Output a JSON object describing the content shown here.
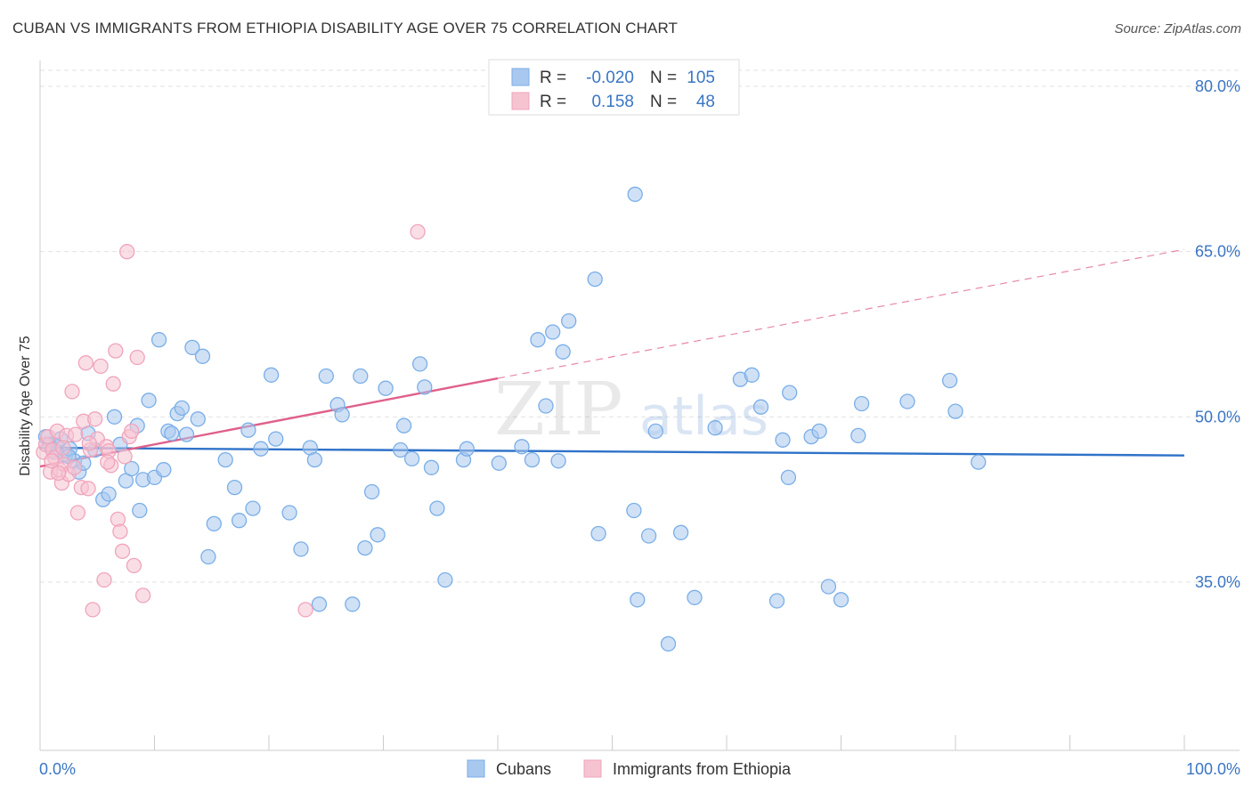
{
  "title": "CUBAN VS IMMIGRANTS FROM ETHIOPIA DISABILITY AGE OVER 75 CORRELATION CHART",
  "source": "Source: ZipAtlas.com",
  "watermark": {
    "zip": "ZIP",
    "atlas": "atlas"
  },
  "chart_data": {
    "type": "scatter",
    "ylabel": "Disability Age Over 75",
    "xlim": [
      0,
      100
    ],
    "ylim": [
      20,
      83
    ],
    "x_ticks": [
      "0.0%",
      "100.0%"
    ],
    "y_ticks": [
      {
        "value": 80,
        "label": "80.0%"
      },
      {
        "value": 65,
        "label": "65.0%"
      },
      {
        "value": 50,
        "label": "50.0%"
      },
      {
        "value": 35,
        "label": "35.0%"
      }
    ],
    "grid": true,
    "legend_position": "top-center",
    "stats_legend": [
      {
        "r_label": "R =",
        "r_value": "-0.020",
        "n_label": "N =",
        "n_value": "105"
      },
      {
        "r_label": "R =",
        "r_value": "0.158",
        "n_label": "N =",
        "n_value": "48"
      }
    ],
    "series": [
      {
        "name": "Cubans",
        "color": "#7aaee8",
        "fill": "#a9c8ef",
        "trend_color": "#2f72c8",
        "trend": {
          "x0": 0,
          "y0": 47.2,
          "x1": 100,
          "y1": 46.5
        },
        "points": [
          [
            0.5,
            48.2
          ],
          [
            0.8,
            47.5
          ],
          [
            1.2,
            46.8
          ],
          [
            1.5,
            47.3
          ],
          [
            1.8,
            48.0
          ],
          [
            2.2,
            46.5
          ],
          [
            2.6,
            47.1
          ],
          [
            3.0,
            46.0
          ],
          [
            3.4,
            45.0
          ],
          [
            3.8,
            45.8
          ],
          [
            4.2,
            48.5
          ],
          [
            4.8,
            47.0
          ],
          [
            5.5,
            42.5
          ],
          [
            6.0,
            43.0
          ],
          [
            6.5,
            50.0
          ],
          [
            7.0,
            47.5
          ],
          [
            7.5,
            44.2
          ],
          [
            8.0,
            45.3
          ],
          [
            8.5,
            49.2
          ],
          [
            8.7,
            41.5
          ],
          [
            9.0,
            44.3
          ],
          [
            9.5,
            51.5
          ],
          [
            10.0,
            44.5
          ],
          [
            10.4,
            57.0
          ],
          [
            10.8,
            45.2
          ],
          [
            11.2,
            48.7
          ],
          [
            11.5,
            48.5
          ],
          [
            12.0,
            50.3
          ],
          [
            12.4,
            50.8
          ],
          [
            12.8,
            48.4
          ],
          [
            13.3,
            56.3
          ],
          [
            13.8,
            49.8
          ],
          [
            14.2,
            55.5
          ],
          [
            14.7,
            37.3
          ],
          [
            15.2,
            40.3
          ],
          [
            16.2,
            46.1
          ],
          [
            17.0,
            43.6
          ],
          [
            17.4,
            40.6
          ],
          [
            18.2,
            48.8
          ],
          [
            18.6,
            41.7
          ],
          [
            19.3,
            47.1
          ],
          [
            20.2,
            53.8
          ],
          [
            20.6,
            48.0
          ],
          [
            21.8,
            41.3
          ],
          [
            22.8,
            38.0
          ],
          [
            23.6,
            47.2
          ],
          [
            24.0,
            46.1
          ],
          [
            24.4,
            33.0
          ],
          [
            25.0,
            53.7
          ],
          [
            26.0,
            51.1
          ],
          [
            26.4,
            50.2
          ],
          [
            27.3,
            33.0
          ],
          [
            28.0,
            53.7
          ],
          [
            28.4,
            38.1
          ],
          [
            29.0,
            43.2
          ],
          [
            29.5,
            39.3
          ],
          [
            30.2,
            52.6
          ],
          [
            31.5,
            47.0
          ],
          [
            31.8,
            49.2
          ],
          [
            32.5,
            46.2
          ],
          [
            33.2,
            54.8
          ],
          [
            33.6,
            52.7
          ],
          [
            34.2,
            45.4
          ],
          [
            34.7,
            41.7
          ],
          [
            35.4,
            35.2
          ],
          [
            37.0,
            46.1
          ],
          [
            37.3,
            47.1
          ],
          [
            40.1,
            45.8
          ],
          [
            42.1,
            47.3
          ],
          [
            43.0,
            46.1
          ],
          [
            43.5,
            57.0
          ],
          [
            44.2,
            51.0
          ],
          [
            44.8,
            57.7
          ],
          [
            45.3,
            46.0
          ],
          [
            45.7,
            55.9
          ],
          [
            46.2,
            58.7
          ],
          [
            48.8,
            39.4
          ],
          [
            48.5,
            62.5
          ],
          [
            52.0,
            70.2
          ],
          [
            51.9,
            41.5
          ],
          [
            52.2,
            33.4
          ],
          [
            53.2,
            39.2
          ],
          [
            53.8,
            48.7
          ],
          [
            54.9,
            29.4
          ],
          [
            56.0,
            39.5
          ],
          [
            57.2,
            33.6
          ],
          [
            59.0,
            49.0
          ],
          [
            61.2,
            53.4
          ],
          [
            62.2,
            53.8
          ],
          [
            63.0,
            50.9
          ],
          [
            64.4,
            33.3
          ],
          [
            64.9,
            47.9
          ],
          [
            65.4,
            44.5
          ],
          [
            65.5,
            52.2
          ],
          [
            67.4,
            48.2
          ],
          [
            68.1,
            48.7
          ],
          [
            68.9,
            34.6
          ],
          [
            70.0,
            33.4
          ],
          [
            71.5,
            48.3
          ],
          [
            71.8,
            51.2
          ],
          [
            75.8,
            51.4
          ],
          [
            79.5,
            53.3
          ],
          [
            80.0,
            50.5
          ],
          [
            82.0,
            45.9
          ],
          [
            2.5,
            46.4
          ]
        ]
      },
      {
        "name": "Immigrants from Ethiopia",
        "color": "#f0a4bb",
        "fill": "#f6c3d1",
        "trend_color": "#e0608a",
        "trend": {
          "x0": 0,
          "y0": 45.5,
          "x1": 40,
          "y1": 53.5
        },
        "trend_dashed": {
          "x0": 40,
          "y0": 53.5,
          "x1": 100,
          "y1": 65.2
        },
        "points": [
          [
            0.3,
            46.8
          ],
          [
            0.5,
            47.5
          ],
          [
            0.7,
            48.2
          ],
          [
            0.9,
            45.0
          ],
          [
            1.1,
            47.0
          ],
          [
            1.3,
            46.3
          ],
          [
            1.5,
            48.7
          ],
          [
            1.7,
            45.2
          ],
          [
            1.9,
            44.0
          ],
          [
            2.1,
            45.7
          ],
          [
            2.3,
            48.3
          ],
          [
            2.5,
            44.8
          ],
          [
            2.8,
            52.3
          ],
          [
            3.1,
            48.4
          ],
          [
            3.3,
            41.3
          ],
          [
            3.6,
            43.6
          ],
          [
            3.8,
            49.6
          ],
          [
            4.0,
            54.9
          ],
          [
            4.2,
            43.5
          ],
          [
            4.4,
            47.0
          ],
          [
            4.6,
            32.5
          ],
          [
            4.8,
            49.8
          ],
          [
            5.0,
            48.0
          ],
          [
            5.3,
            54.6
          ],
          [
            5.6,
            35.2
          ],
          [
            5.8,
            47.3
          ],
          [
            6.0,
            46.9
          ],
          [
            6.2,
            45.6
          ],
          [
            6.4,
            53.0
          ],
          [
            6.6,
            56.0
          ],
          [
            6.8,
            40.7
          ],
          [
            7.0,
            39.6
          ],
          [
            7.2,
            37.8
          ],
          [
            7.4,
            46.4
          ],
          [
            7.6,
            65.0
          ],
          [
            7.8,
            48.2
          ],
          [
            8.0,
            48.7
          ],
          [
            8.2,
            36.5
          ],
          [
            8.5,
            55.4
          ],
          [
            9.0,
            33.8
          ],
          [
            5.9,
            45.9
          ],
          [
            3.0,
            45.4
          ],
          [
            2.0,
            47.2
          ],
          [
            1.0,
            46.0
          ],
          [
            1.6,
            44.9
          ],
          [
            23.2,
            32.5
          ],
          [
            33.0,
            66.8
          ],
          [
            4.3,
            47.6
          ]
        ]
      }
    ]
  }
}
